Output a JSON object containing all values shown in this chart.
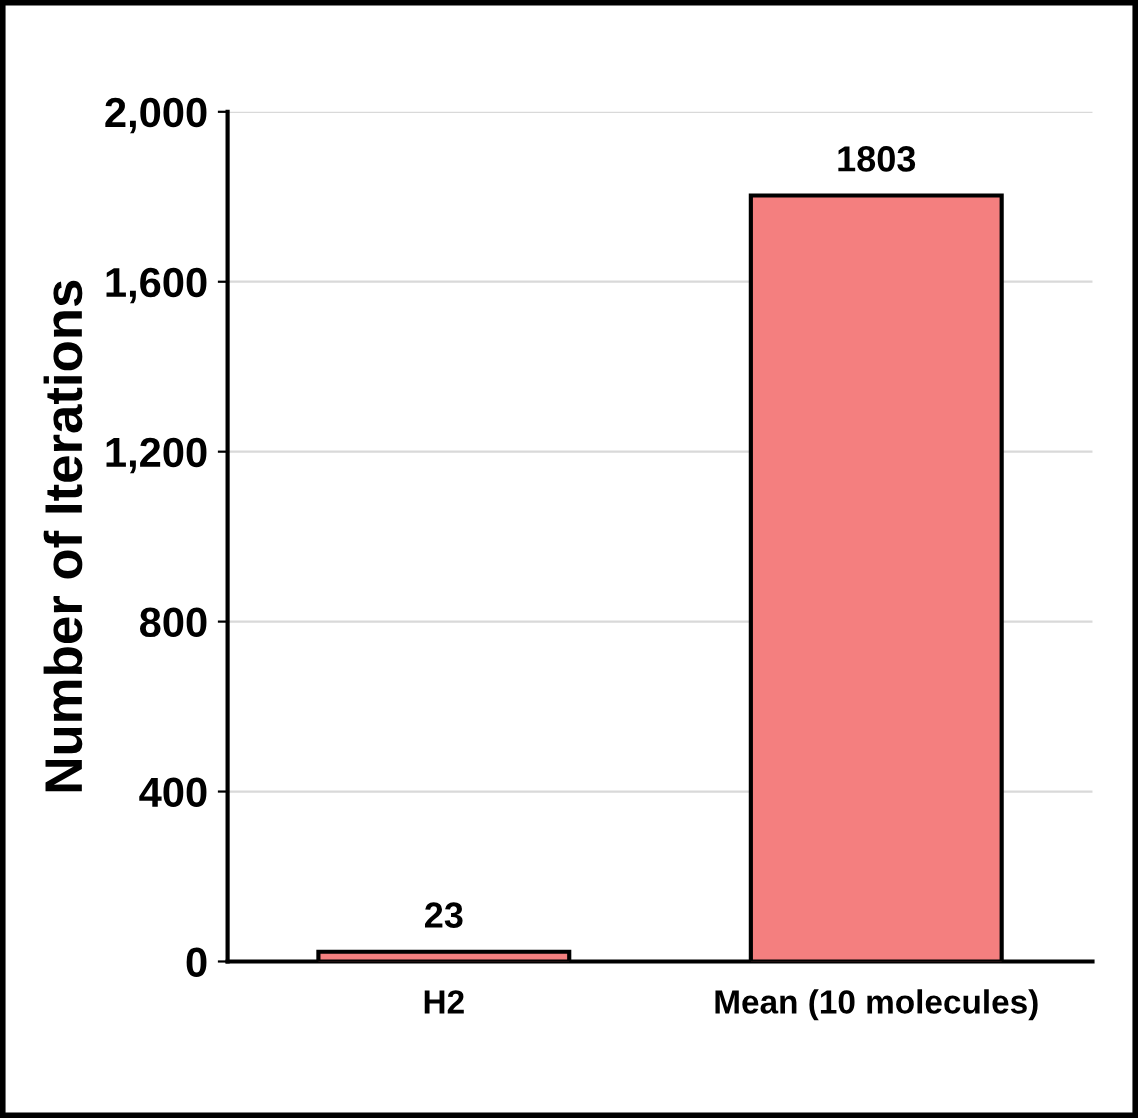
{
  "chart_data": {
    "type": "bar",
    "ylabel": "Number of Iterations",
    "categories": [
      "H2",
      "Mean (10 molecules)"
    ],
    "values": [
      23,
      1803
    ],
    "color": "#f47f7f",
    "ylim": [
      0,
      2000
    ],
    "yticks": [
      {
        "value": 0,
        "label": "0"
      },
      {
        "value": 400,
        "label": "400"
      },
      {
        "value": 800,
        "label": "800"
      },
      {
        "value": 1200,
        "label": "1,200"
      },
      {
        "value": 1600,
        "label": "1,600"
      },
      {
        "value": 2000,
        "label": "2,000"
      }
    ],
    "grid": "y",
    "data_labels": true
  }
}
